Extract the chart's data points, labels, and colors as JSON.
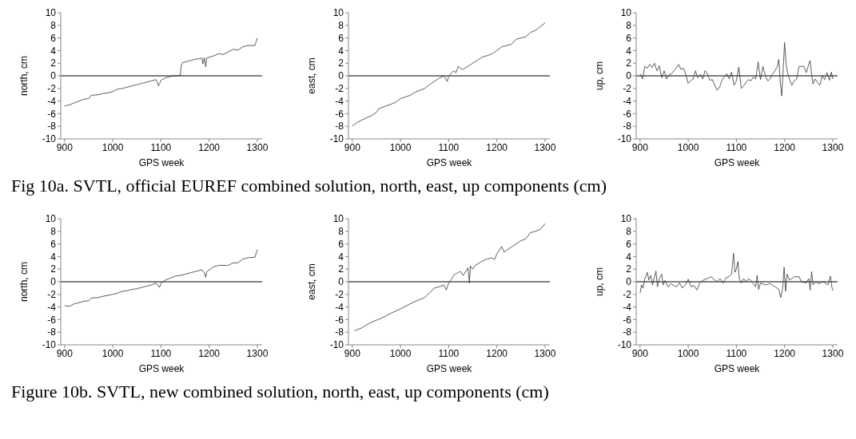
{
  "chart_data": [
    {
      "type": "line",
      "xlabel": "GPS week",
      "ylabel": "north, cm",
      "xlim": [
        892,
        1310
      ],
      "ylim": [
        -10,
        10
      ],
      "xticks": [
        900,
        1000,
        1100,
        1200,
        1300
      ],
      "yticks": [
        -10,
        -8,
        -6,
        -4,
        -2,
        0,
        2,
        4,
        6,
        8,
        10
      ],
      "ref_lines": [
        {
          "axis": "y",
          "value": 0,
          "color": "#000000"
        }
      ],
      "annotations": [
        "Fig 10a. SVTL, official EUREF combined solution, north, east, up components (cm)"
      ],
      "series": [
        {
          "color": "#333333",
          "x": [
            900,
            910,
            920,
            930,
            940,
            950,
            955,
            970,
            980,
            990,
            1000,
            1010,
            1020,
            1030,
            1040,
            1050,
            1060,
            1070,
            1080,
            1090,
            1095,
            1100,
            1110,
            1120,
            1130,
            1140,
            1142,
            1145,
            1160,
            1170,
            1185,
            1187,
            1190,
            1193,
            1195,
            1210,
            1220,
            1230,
            1240,
            1250,
            1260,
            1270,
            1280,
            1295,
            1300
          ],
          "values": [
            -4.8,
            -4.6,
            -4.3,
            -4.0,
            -3.7,
            -3.6,
            -3.1,
            -3.0,
            -2.8,
            -2.7,
            -2.5,
            -2.1,
            -2.0,
            -1.8,
            -1.6,
            -1.4,
            -1.2,
            -1.0,
            -0.8,
            -0.6,
            -1.6,
            -0.7,
            -0.3,
            -0.1,
            0.0,
            0.1,
            1.6,
            2.1,
            2.4,
            2.6,
            2.8,
            1.9,
            2.9,
            1.4,
            2.8,
            3.2,
            3.5,
            3.4,
            3.8,
            4.2,
            4.1,
            4.6,
            4.8,
            4.8,
            6.0
          ]
        }
      ]
    },
    {
      "type": "line",
      "xlabel": "GPS week",
      "ylabel": "east, cm",
      "xlim": [
        892,
        1310
      ],
      "ylim": [
        -10,
        10
      ],
      "xticks": [
        900,
        1000,
        1100,
        1200,
        1300
      ],
      "yticks": [
        -10,
        -8,
        -6,
        -4,
        -2,
        0,
        2,
        4,
        6,
        8,
        10
      ],
      "ref_lines": [
        {
          "axis": "y",
          "value": 0,
          "color": "#000000"
        }
      ],
      "series": [
        {
          "color": "#333333",
          "x": [
            900,
            910,
            920,
            940,
            950,
            955,
            970,
            990,
            1000,
            1020,
            1030,
            1050,
            1060,
            1080,
            1090,
            1097,
            1100,
            1110,
            1115,
            1120,
            1128,
            1140,
            1150,
            1160,
            1170,
            1180,
            1190,
            1200,
            1210,
            1220,
            1230,
            1240,
            1250,
            1260,
            1270,
            1280,
            1290,
            1300
          ],
          "values": [
            -8.0,
            -7.4,
            -7.0,
            -6.3,
            -5.8,
            -5.2,
            -4.8,
            -4.2,
            -3.6,
            -3.1,
            -2.6,
            -2.0,
            -1.4,
            -0.4,
            0.0,
            -0.9,
            0.0,
            0.8,
            0.5,
            1.5,
            1.0,
            1.5,
            2.0,
            2.5,
            3.0,
            3.2,
            3.5,
            4.0,
            4.6,
            4.8,
            5.0,
            5.8,
            6.0,
            6.2,
            6.9,
            7.2,
            7.8,
            8.4
          ]
        }
      ]
    },
    {
      "type": "line",
      "xlabel": "GPS week",
      "ylabel": "up, cm",
      "xlim": [
        892,
        1310
      ],
      "ylim": [
        -10,
        10
      ],
      "xticks": [
        900,
        1000,
        1100,
        1200,
        1300
      ],
      "yticks": [
        -10,
        -8,
        -6,
        -4,
        -2,
        0,
        2,
        4,
        6,
        8,
        10
      ],
      "ref_lines": [
        {
          "axis": "y",
          "value": 0,
          "color": "#000000"
        }
      ],
      "series": [
        {
          "color": "#333333",
          "x": [
            900,
            905,
            910,
            915,
            920,
            925,
            930,
            935,
            940,
            945,
            950,
            955,
            960,
            965,
            970,
            975,
            980,
            985,
            990,
            995,
            1000,
            1005,
            1010,
            1015,
            1020,
            1025,
            1030,
            1035,
            1040,
            1045,
            1050,
            1055,
            1060,
            1065,
            1070,
            1075,
            1080,
            1085,
            1090,
            1095,
            1100,
            1105,
            1110,
            1115,
            1120,
            1125,
            1130,
            1135,
            1140,
            1145,
            1150,
            1155,
            1160,
            1165,
            1170,
            1175,
            1180,
            1185,
            1188,
            1191,
            1194,
            1197,
            1200,
            1203,
            1206,
            1210,
            1215,
            1220,
            1225,
            1230,
            1240,
            1245,
            1250,
            1253,
            1256,
            1259,
            1263,
            1268,
            1273,
            1278,
            1283,
            1288,
            1293,
            1297,
            1300
          ],
          "values": [
            0.3,
            -0.5,
            1.5,
            1.2,
            1.8,
            1.3,
            2.0,
            0.8,
            1.6,
            -0.3,
            0.8,
            -0.5,
            0.2,
            0.3,
            0.8,
            1.2,
            1.8,
            1.0,
            1.2,
            0.2,
            -1.2,
            -0.8,
            -0.5,
            0.8,
            -0.3,
            0.2,
            -0.5,
            0.8,
            0.3,
            -0.7,
            -0.6,
            -1.5,
            -2.3,
            -1.8,
            -0.7,
            -0.2,
            0.3,
            -0.5,
            0.6,
            -1.5,
            -0.8,
            1.4,
            -2.0,
            -1.6,
            -1.0,
            -0.6,
            -0.8,
            -0.2,
            -0.5,
            2.2,
            -0.6,
            1.5,
            0.0,
            -0.8,
            -0.5,
            0.3,
            0.8,
            1.5,
            2.6,
            -1.0,
            -3.2,
            1.0,
            5.3,
            2.0,
            0.5,
            -0.5,
            -1.5,
            -0.8,
            -0.5,
            1.5,
            1.5,
            0.5,
            1.8,
            2.4,
            0.2,
            -1.3,
            -0.5,
            -1.0,
            -1.5,
            0.0,
            -0.6,
            0.5,
            -0.7,
            0.6,
            -0.5
          ]
        }
      ]
    },
    {
      "type": "line",
      "xlabel": "GPS week",
      "ylabel": "north, cm",
      "xlim": [
        892,
        1310
      ],
      "ylim": [
        -10,
        10
      ],
      "xticks": [
        900,
        1000,
        1100,
        1200,
        1300
      ],
      "yticks": [
        -10,
        -8,
        -6,
        -4,
        -2,
        0,
        2,
        4,
        6,
        8,
        10
      ],
      "ref_lines": [
        {
          "axis": "y",
          "value": 0,
          "color": "#000000"
        }
      ],
      "annotations": [
        "Figure 10b. SVTL, new combined solution, north, east, up components (cm)"
      ],
      "series": [
        {
          "color": "#333333",
          "x": [
            900,
            910,
            920,
            930,
            940,
            950,
            955,
            970,
            980,
            1000,
            1010,
            1020,
            1030,
            1040,
            1050,
            1060,
            1070,
            1080,
            1090,
            1097,
            1100,
            1110,
            1120,
            1130,
            1140,
            1150,
            1160,
            1170,
            1185,
            1190,
            1193,
            1195,
            1210,
            1220,
            1240,
            1250,
            1260,
            1270,
            1280,
            1295,
            1300
          ],
          "values": [
            -3.8,
            -3.9,
            -3.5,
            -3.3,
            -3.1,
            -3.0,
            -2.6,
            -2.5,
            -2.3,
            -2.0,
            -1.8,
            -1.5,
            -1.4,
            -1.2,
            -1.1,
            -0.9,
            -0.7,
            -0.5,
            -0.2,
            -0.9,
            -0.2,
            0.3,
            0.6,
            0.9,
            1.0,
            1.2,
            1.4,
            1.6,
            1.9,
            1.4,
            0.7,
            1.6,
            2.4,
            2.6,
            2.6,
            3.0,
            3.0,
            3.6,
            3.8,
            3.9,
            5.1
          ]
        }
      ]
    },
    {
      "type": "line",
      "xlabel": "GPS week",
      "ylabel": "east, cm",
      "xlim": [
        892,
        1310
      ],
      "ylim": [
        -10,
        10
      ],
      "xticks": [
        900,
        1000,
        1100,
        1200,
        1300
      ],
      "yticks": [
        -10,
        -8,
        -6,
        -4,
        -2,
        0,
        2,
        4,
        6,
        8,
        10
      ],
      "ref_lines": [
        {
          "axis": "y",
          "value": 0,
          "color": "#000000"
        }
      ],
      "series": [
        {
          "color": "#333333",
          "x": [
            905,
            910,
            920,
            930,
            940,
            960,
            980,
            1000,
            1020,
            1040,
            1050,
            1060,
            1070,
            1080,
            1090,
            1095,
            1100,
            1105,
            1110,
            1120,
            1125,
            1130,
            1140,
            1143,
            1145,
            1150,
            1155,
            1160,
            1170,
            1180,
            1190,
            1195,
            1200,
            1210,
            1215,
            1230,
            1240,
            1250,
            1260,
            1270,
            1280,
            1290,
            1300
          ],
          "values": [
            -7.8,
            -7.6,
            -7.3,
            -6.8,
            -6.4,
            -5.8,
            -5.0,
            -4.3,
            -3.5,
            -2.8,
            -2.5,
            -1.8,
            -1.0,
            -0.8,
            -0.5,
            -1.3,
            -0.2,
            0.3,
            1.0,
            1.5,
            1.6,
            1.0,
            2.2,
            -0.2,
            2.5,
            2.0,
            2.6,
            2.8,
            3.3,
            3.6,
            3.8,
            3.5,
            4.4,
            5.6,
            4.7,
            5.5,
            6.0,
            6.5,
            6.8,
            7.8,
            8.0,
            8.3,
            9.2
          ]
        }
      ]
    },
    {
      "type": "line",
      "xlabel": "GPS week",
      "ylabel": "up, cm",
      "xlim": [
        892,
        1310
      ],
      "ylim": [
        -10,
        10
      ],
      "xticks": [
        900,
        1000,
        1100,
        1200,
        1300
      ],
      "yticks": [
        -10,
        -8,
        -6,
        -4,
        -2,
        0,
        2,
        4,
        6,
        8,
        10
      ],
      "ref_lines": [
        {
          "axis": "y",
          "value": 0,
          "color": "#000000"
        }
      ],
      "series": [
        {
          "color": "#333333",
          "x": [
            900,
            903,
            906,
            910,
            915,
            918,
            922,
            926,
            930,
            933,
            936,
            940,
            945,
            948,
            952,
            958,
            964,
            970,
            976,
            982,
            988,
            994,
            1000,
            1006,
            1012,
            1018,
            1024,
            1030,
            1036,
            1042,
            1048,
            1054,
            1060,
            1066,
            1072,
            1078,
            1084,
            1090,
            1094,
            1097,
            1100,
            1103,
            1106,
            1110,
            1115,
            1120,
            1125,
            1130,
            1135,
            1140,
            1143,
            1146,
            1150,
            1160,
            1170,
            1180,
            1188,
            1192,
            1196,
            1199,
            1202,
            1205,
            1210,
            1215,
            1220,
            1230,
            1235,
            1245,
            1250,
            1253,
            1256,
            1259,
            1265,
            1270,
            1280,
            1290,
            1295,
            1298,
            1300
          ],
          "values": [
            -1.8,
            -0.5,
            -1.0,
            0.5,
            1.5,
            0.3,
            1.0,
            -0.5,
            0.8,
            1.7,
            -0.8,
            0.5,
            1.2,
            -0.5,
            0.2,
            -0.8,
            -0.3,
            -0.6,
            -0.8,
            -0.2,
            -1.0,
            -0.5,
            0.4,
            -0.8,
            -0.6,
            -1.3,
            -0.2,
            0.2,
            0.4,
            0.6,
            0.8,
            0.3,
            0.0,
            0.5,
            -0.2,
            0.6,
            0.8,
            1.2,
            4.5,
            1.5,
            2.0,
            3.2,
            0.5,
            -0.2,
            0.5,
            0.0,
            0.5,
            0.2,
            -0.3,
            -0.8,
            1.0,
            -1.2,
            -0.2,
            -0.5,
            -0.3,
            -0.8,
            -1.2,
            -2.5,
            -1.0,
            2.3,
            -1.5,
            1.2,
            0.3,
            0.5,
            0.8,
            0.8,
            0.0,
            -0.2,
            0.5,
            -1.3,
            1.6,
            -0.5,
            0.0,
            -0.3,
            0.0,
            -0.5,
            0.9,
            -0.8,
            -1.4
          ]
        }
      ]
    }
  ]
}
